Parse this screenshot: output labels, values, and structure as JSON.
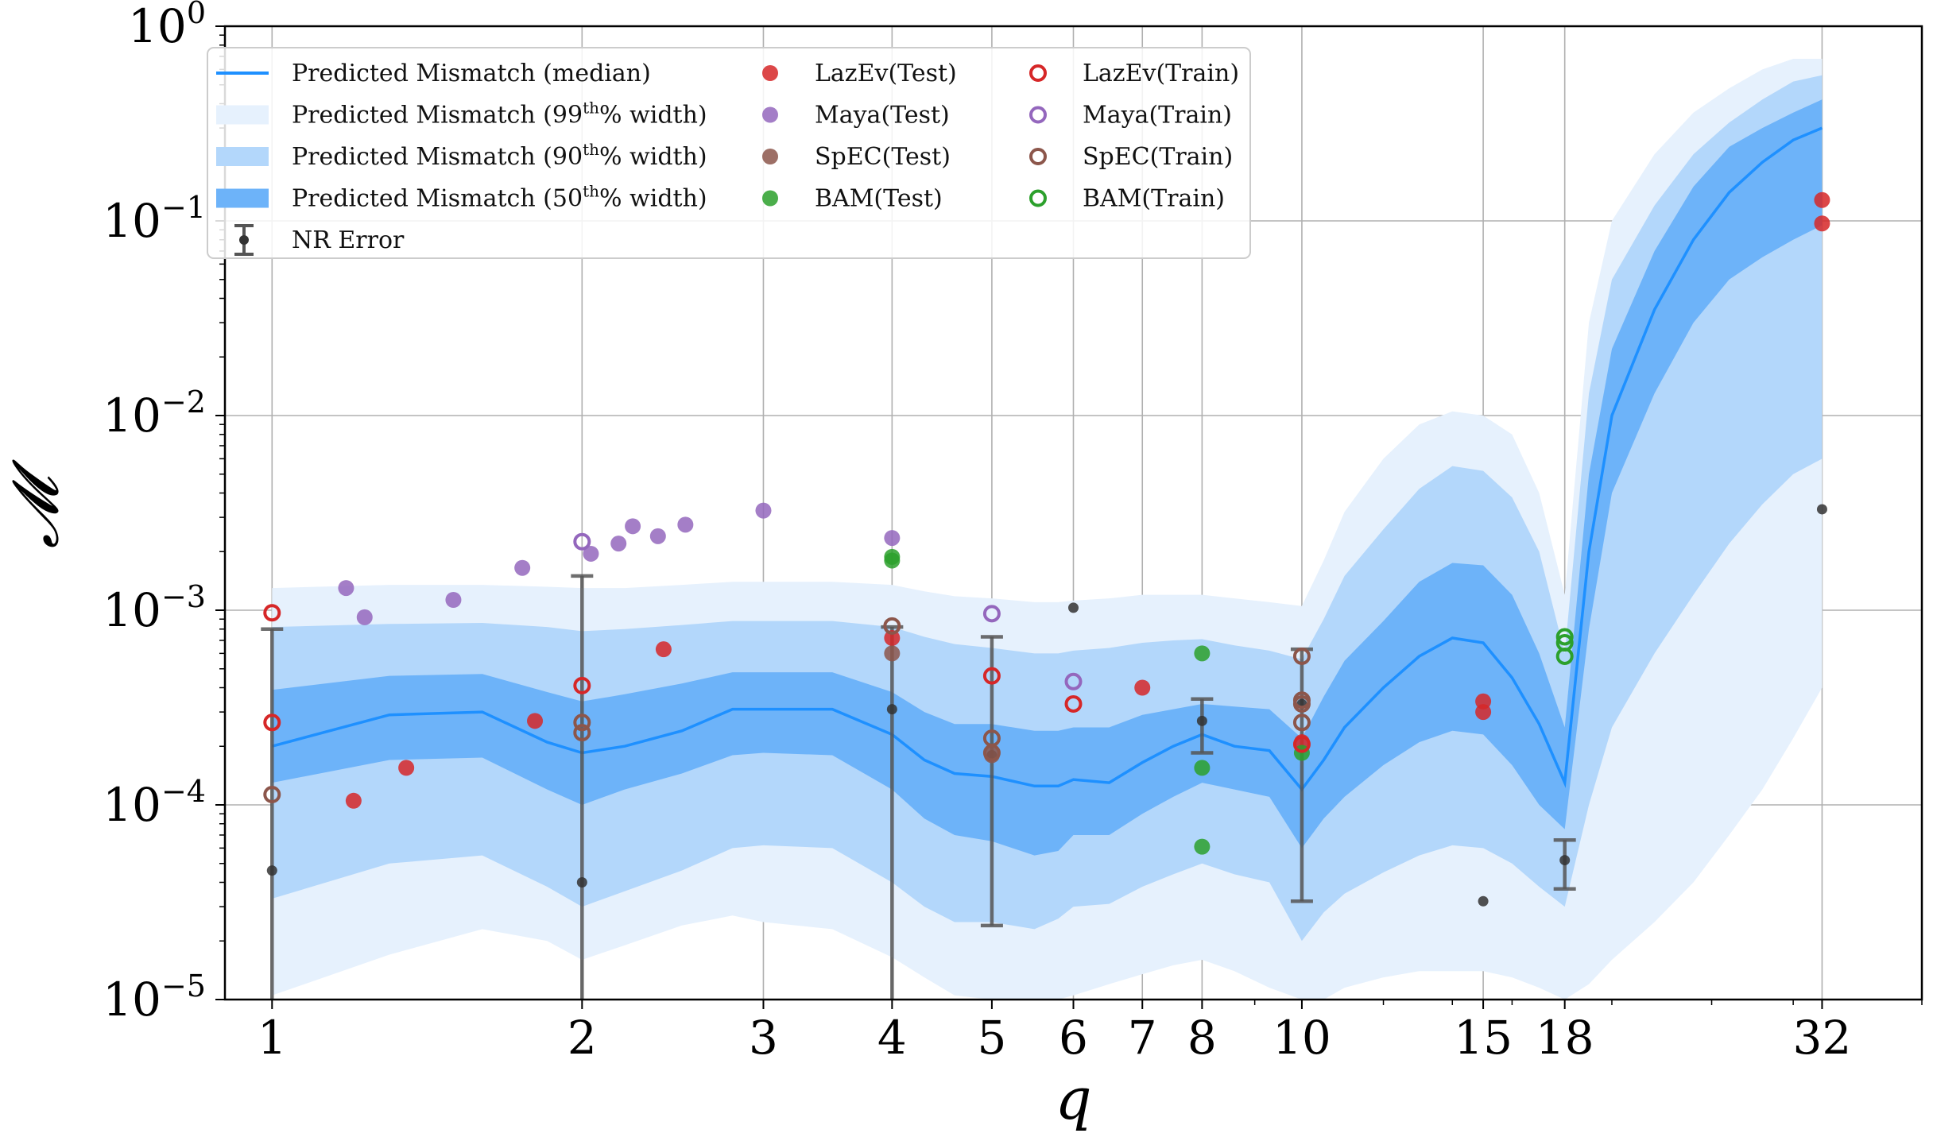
{
  "chart_data": {
    "type": "scatter",
    "xscale": "log",
    "yscale": "log",
    "xlim": [
      0.9,
      40
    ],
    "ylim": [
      1e-05,
      1
    ],
    "xlabel": "q",
    "ylabel": "𝓜",
    "xticks": [
      1,
      2,
      3,
      4,
      5,
      6,
      7,
      8,
      10,
      15,
      18,
      32
    ],
    "xtick_labels": [
      "1",
      "2",
      "3",
      "4",
      "5",
      "6",
      "7",
      "8",
      "10",
      "15",
      "18",
      "32"
    ],
    "yticks": [
      {
        "value": 1e-05,
        "base": "10",
        "exp": "−5"
      },
      {
        "value": 0.0001,
        "base": "10",
        "exp": "−4"
      },
      {
        "value": 0.001,
        "base": "10",
        "exp": "−3"
      },
      {
        "value": 0.01,
        "base": "10",
        "exp": "−2"
      },
      {
        "value": 0.1,
        "base": "10",
        "exp": "−1"
      },
      {
        "value": 1,
        "base": "10",
        "exp": "0"
      }
    ],
    "grid": true,
    "legend_position": "top-left",
    "legend": [
      {
        "label": "Predicted Mismatch (median)",
        "kind": "line",
        "color": "#1e90ff"
      },
      {
        "label_pre": "Predicted Mismatch (99",
        "label_sup": "th",
        "label_post": "% width)",
        "kind": "band",
        "color": "#e6f1fd"
      },
      {
        "label_pre": "Predicted Mismatch (90",
        "label_sup": "th",
        "label_post": "% width)",
        "kind": "band",
        "color": "#b3d7fb"
      },
      {
        "label_pre": "Predicted Mismatch (50",
        "label_sup": "th",
        "label_post": "% width)",
        "kind": "band",
        "color": "#6db3f9"
      },
      {
        "label": "NR Error",
        "kind": "errorbar",
        "color": "#555555"
      },
      {
        "label": "LazEv(Test)",
        "kind": "filled",
        "color": "#d62728"
      },
      {
        "label": "Maya(Test)",
        "kind": "filled",
        "color": "#9467bd"
      },
      {
        "label": "SpEC(Test)",
        "kind": "filled",
        "color": "#8c564b"
      },
      {
        "label": "BAM(Test)",
        "kind": "filled",
        "color": "#2ca02c"
      },
      {
        "label": "LazEv(Train)",
        "kind": "open",
        "color": "#d62728"
      },
      {
        "label": "Maya(Train)",
        "kind": "open",
        "color": "#9467bd"
      },
      {
        "label": "SpEC(Train)",
        "kind": "open",
        "color": "#8c564b"
      },
      {
        "label": "BAM(Train)",
        "kind": "open",
        "color": "#2ca02c"
      }
    ],
    "bands": {
      "x": [
        1,
        1.3,
        1.6,
        1.85,
        2,
        2.2,
        2.5,
        2.8,
        3,
        3.5,
        4,
        4.3,
        4.6,
        5,
        5.5,
        5.8,
        6,
        6.5,
        7,
        7.5,
        8,
        8.6,
        9.3,
        10,
        10.5,
        11,
        12,
        13,
        14,
        15,
        16,
        17,
        18,
        19,
        20,
        22,
        24,
        26,
        28,
        30,
        32
      ],
      "median": [
        0.0002,
        0.00029,
        0.0003,
        0.00021,
        0.000185,
        0.0002,
        0.00024,
        0.00031,
        0.00031,
        0.00031,
        0.00023,
        0.00017,
        0.000145,
        0.00014,
        0.000125,
        0.000125,
        0.000135,
        0.00013,
        0.000165,
        0.0002,
        0.00023,
        0.0002,
        0.00019,
        0.00012,
        0.00017,
        0.00025,
        0.0004,
        0.00058,
        0.00072,
        0.00068,
        0.00045,
        0.00026,
        0.00013,
        0.002,
        0.01,
        0.035,
        0.08,
        0.14,
        0.2,
        0.26,
        0.3
      ],
      "p50_lo": [
        0.00013,
        0.00017,
        0.000175,
        0.00012,
        0.0001,
        0.00012,
        0.000145,
        0.00018,
        0.000185,
        0.00018,
        0.00012,
        8.5e-05,
        7e-05,
        6.5e-05,
        5.5e-05,
        5.8e-05,
        7e-05,
        7e-05,
        9e-05,
        0.00011,
        0.00013,
        0.00012,
        0.00011,
        6e-05,
        8.5e-05,
        0.00011,
        0.00016,
        0.00021,
        0.00024,
        0.00023,
        0.00016,
        0.0001,
        7.5e-05,
        0.0008,
        0.004,
        0.013,
        0.03,
        0.05,
        0.065,
        0.08,
        0.095
      ],
      "p50_hi": [
        0.00039,
        0.00046,
        0.00047,
        0.00038,
        0.00034,
        0.00037,
        0.00042,
        0.00048,
        0.00048,
        0.00048,
        0.00038,
        0.0003,
        0.00026,
        0.00026,
        0.00024,
        0.00024,
        0.00025,
        0.00025,
        0.00029,
        0.00031,
        0.00033,
        0.00032,
        0.00031,
        0.00022,
        0.00036,
        0.00055,
        0.00088,
        0.0014,
        0.00175,
        0.0017,
        0.0012,
        0.0006,
        0.00025,
        0.005,
        0.022,
        0.07,
        0.15,
        0.24,
        0.3,
        0.36,
        0.42
      ],
      "p90_lo": [
        3.3e-05,
        5e-05,
        5.5e-05,
        3.8e-05,
        3e-05,
        3.6e-05,
        4.6e-05,
        6e-05,
        6.2e-05,
        6e-05,
        4e-05,
        3e-05,
        2.5e-05,
        2.5e-05,
        2.3e-05,
        2.6e-05,
        3e-05,
        3.1e-05,
        3.8e-05,
        4.4e-05,
        5e-05,
        4.4e-05,
        4e-05,
        2e-05,
        2.8e-05,
        3.5e-05,
        4.5e-05,
        5.5e-05,
        6.2e-05,
        6e-05,
        5e-05,
        3.8e-05,
        3e-05,
        0.0001,
        0.00025,
        0.0006,
        0.0012,
        0.0022,
        0.0035,
        0.005,
        0.006
      ],
      "p90_hi": [
        0.00082,
        0.00085,
        0.00086,
        0.00082,
        0.00078,
        0.0008,
        0.00084,
        0.00088,
        0.00088,
        0.00088,
        0.00082,
        0.00073,
        0.00067,
        0.00064,
        0.0006,
        0.0006,
        0.00062,
        0.00064,
        0.00068,
        0.0007,
        0.00071,
        0.00066,
        0.00062,
        0.00056,
        0.0009,
        0.0015,
        0.0026,
        0.0042,
        0.0055,
        0.0052,
        0.0038,
        0.002,
        0.0006,
        0.013,
        0.05,
        0.12,
        0.22,
        0.32,
        0.42,
        0.52,
        0.56
      ],
      "p99_lo": [
        1.05e-05,
        1.7e-05,
        2.3e-05,
        2e-05,
        1.6e-05,
        1.9e-05,
        2.4e-05,
        2.7e-05,
        2.5e-05,
        2.3e-05,
        1.65e-05,
        1.3e-05,
        1.05e-05,
        1e-05,
        1e-05,
        1e-05,
        1.05e-05,
        1.2e-05,
        1.35e-05,
        1.5e-05,
        1.6e-05,
        1.4e-05,
        1.15e-05,
        1e-05,
        1e-05,
        1.15e-05,
        1.3e-05,
        1.4e-05,
        1.4e-05,
        1.4e-05,
        1.3e-05,
        1.15e-05,
        1e-05,
        1.2e-05,
        1.6e-05,
        2.5e-05,
        4e-05,
        7e-05,
        0.00012,
        0.00022,
        0.0004
      ],
      "p99_hi": [
        0.0013,
        0.00135,
        0.00135,
        0.00132,
        0.0013,
        0.0013,
        0.00135,
        0.0014,
        0.0014,
        0.0014,
        0.00135,
        0.00125,
        0.00118,
        0.00115,
        0.0011,
        0.0011,
        0.00112,
        0.00115,
        0.0012,
        0.0012,
        0.0012,
        0.00115,
        0.0011,
        0.00105,
        0.0018,
        0.0032,
        0.006,
        0.009,
        0.0105,
        0.01,
        0.008,
        0.004,
        0.0012,
        0.03,
        0.1,
        0.22,
        0.36,
        0.48,
        0.6,
        0.68,
        0.68
      ]
    },
    "nr_error": [
      {
        "x": 1,
        "center": 4.6e-05,
        "lo": 1e-05,
        "hi": 0.0008
      },
      {
        "x": 2,
        "center": 4e-05,
        "lo": 1e-05,
        "hi": 0.0015
      },
      {
        "x": 4,
        "center": 0.00031,
        "lo": 1e-05,
        "hi": 0.00082
      },
      {
        "x": 5,
        "center": 0.00018,
        "lo": 2.4e-05,
        "hi": 0.00073
      },
      {
        "x": 6,
        "center": 0.00103,
        "lo": null,
        "hi": null
      },
      {
        "x": 8,
        "center": 0.00027,
        "lo": 0.000185,
        "hi": 0.00035
      },
      {
        "x": 10,
        "center": 0.00033,
        "lo": 3.2e-05,
        "hi": 0.00063
      },
      {
        "x": 15,
        "center": 3.2e-05,
        "lo": null,
        "hi": null
      },
      {
        "x": 18,
        "center": 5.2e-05,
        "lo": 3.7e-05,
        "hi": 6.6e-05
      },
      {
        "x": 32,
        "center": 0.0033,
        "lo": null,
        "hi": null
      }
    ],
    "series": [
      {
        "name": "LazEv(Test)",
        "style": "filled",
        "color": "#d62728",
        "points": [
          [
            1.2,
            0.000105
          ],
          [
            1.35,
            0.000155
          ],
          [
            1.8,
            0.00027
          ],
          [
            2.4,
            0.00063
          ],
          [
            4,
            0.00072
          ],
          [
            7,
            0.0004
          ],
          [
            10,
            0.00021
          ],
          [
            15,
            0.0003
          ],
          [
            15,
            0.00034
          ],
          [
            32,
            0.128
          ],
          [
            32,
            0.097
          ]
        ]
      },
      {
        "name": "Maya(Test)",
        "style": "filled",
        "color": "#9467bd",
        "points": [
          [
            1.18,
            0.0013
          ],
          [
            1.23,
            0.00092
          ],
          [
            1.5,
            0.00113
          ],
          [
            1.75,
            0.00165
          ],
          [
            2.04,
            0.00195
          ],
          [
            2.17,
            0.0022
          ],
          [
            2.24,
            0.0027
          ],
          [
            2.37,
            0.0024
          ],
          [
            2.52,
            0.00275
          ],
          [
            3,
            0.00325
          ],
          [
            4,
            0.00235
          ]
        ]
      },
      {
        "name": "SpEC(Test)",
        "style": "filled",
        "color": "#8c564b",
        "points": [
          [
            4,
            0.0006
          ],
          [
            5,
            0.00018
          ]
        ]
      },
      {
        "name": "BAM(Test)",
        "style": "filled",
        "color": "#2ca02c",
        "points": [
          [
            4,
            0.0018
          ],
          [
            4,
            0.00188
          ],
          [
            8,
            0.0006
          ],
          [
            8,
            0.000155
          ],
          [
            8,
            6.1e-05
          ],
          [
            10,
            0.000185
          ]
        ]
      },
      {
        "name": "LazEv(Train)",
        "style": "open",
        "color": "#d62728",
        "points": [
          [
            1,
            0.00097
          ],
          [
            1,
            0.000265
          ],
          [
            2,
            0.00041
          ],
          [
            5,
            0.00046
          ],
          [
            6,
            0.00033
          ],
          [
            10,
            0.000205
          ]
        ]
      },
      {
        "name": "Maya(Train)",
        "style": "open",
        "color": "#9467bd",
        "points": [
          [
            2,
            0.00225
          ],
          [
            5,
            0.00096
          ],
          [
            6,
            0.00043
          ]
        ]
      },
      {
        "name": "SpEC(Train)",
        "style": "open",
        "color": "#8c564b",
        "points": [
          [
            1,
            0.000113
          ],
          [
            2,
            0.000265
          ],
          [
            2,
            0.000235
          ],
          [
            4,
            0.00083
          ],
          [
            5,
            0.00022
          ],
          [
            5,
            0.000185
          ],
          [
            10,
            0.00058
          ],
          [
            10,
            0.000345
          ],
          [
            10,
            0.00033
          ],
          [
            10,
            0.000265
          ]
        ]
      },
      {
        "name": "BAM(Train)",
        "style": "open",
        "color": "#2ca02c",
        "points": [
          [
            18,
            0.00073
          ],
          [
            18,
            0.00068
          ],
          [
            18,
            0.00058
          ]
        ]
      }
    ]
  }
}
